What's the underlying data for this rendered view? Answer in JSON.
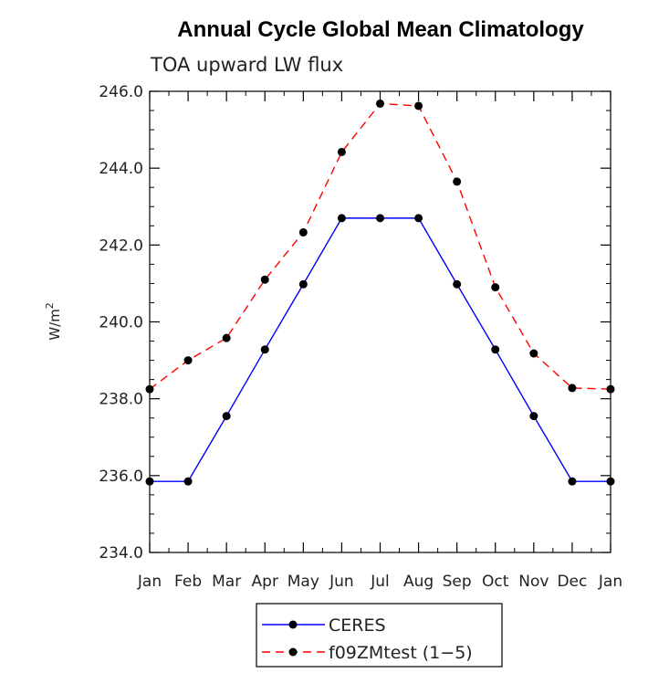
{
  "chart_data": {
    "type": "line",
    "title": "Annual Cycle Global Mean Climatology",
    "subtitle": "TOA upward LW flux",
    "ylabel": "W/m",
    "ylabel_superscript": "2",
    "categories": [
      "Jan",
      "Feb",
      "Mar",
      "Apr",
      "May",
      "Jun",
      "Jul",
      "Aug",
      "Sep",
      "Oct",
      "Nov",
      "Dec",
      "Jan"
    ],
    "ylim": [
      234.0,
      246.0
    ],
    "yticks": [
      "234.0",
      "236.0",
      "238.0",
      "240.0",
      "242.0",
      "244.0",
      "246.0"
    ],
    "series": [
      {
        "name": "CERES",
        "color": "#0000ff",
        "dash": "solid",
        "values": [
          235.85,
          235.85,
          237.55,
          239.28,
          240.98,
          242.7,
          242.7,
          242.7,
          240.98,
          239.28,
          237.55,
          235.85,
          235.85
        ]
      },
      {
        "name": "f09ZMtest (1−5)",
        "color": "#ff0000",
        "dash": "dashed",
        "values": [
          238.25,
          239.0,
          239.58,
          241.1,
          242.33,
          244.42,
          245.68,
          245.62,
          243.65,
          240.9,
          239.18,
          238.28,
          238.25
        ]
      }
    ],
    "legend": {
      "position": "bottom"
    }
  }
}
